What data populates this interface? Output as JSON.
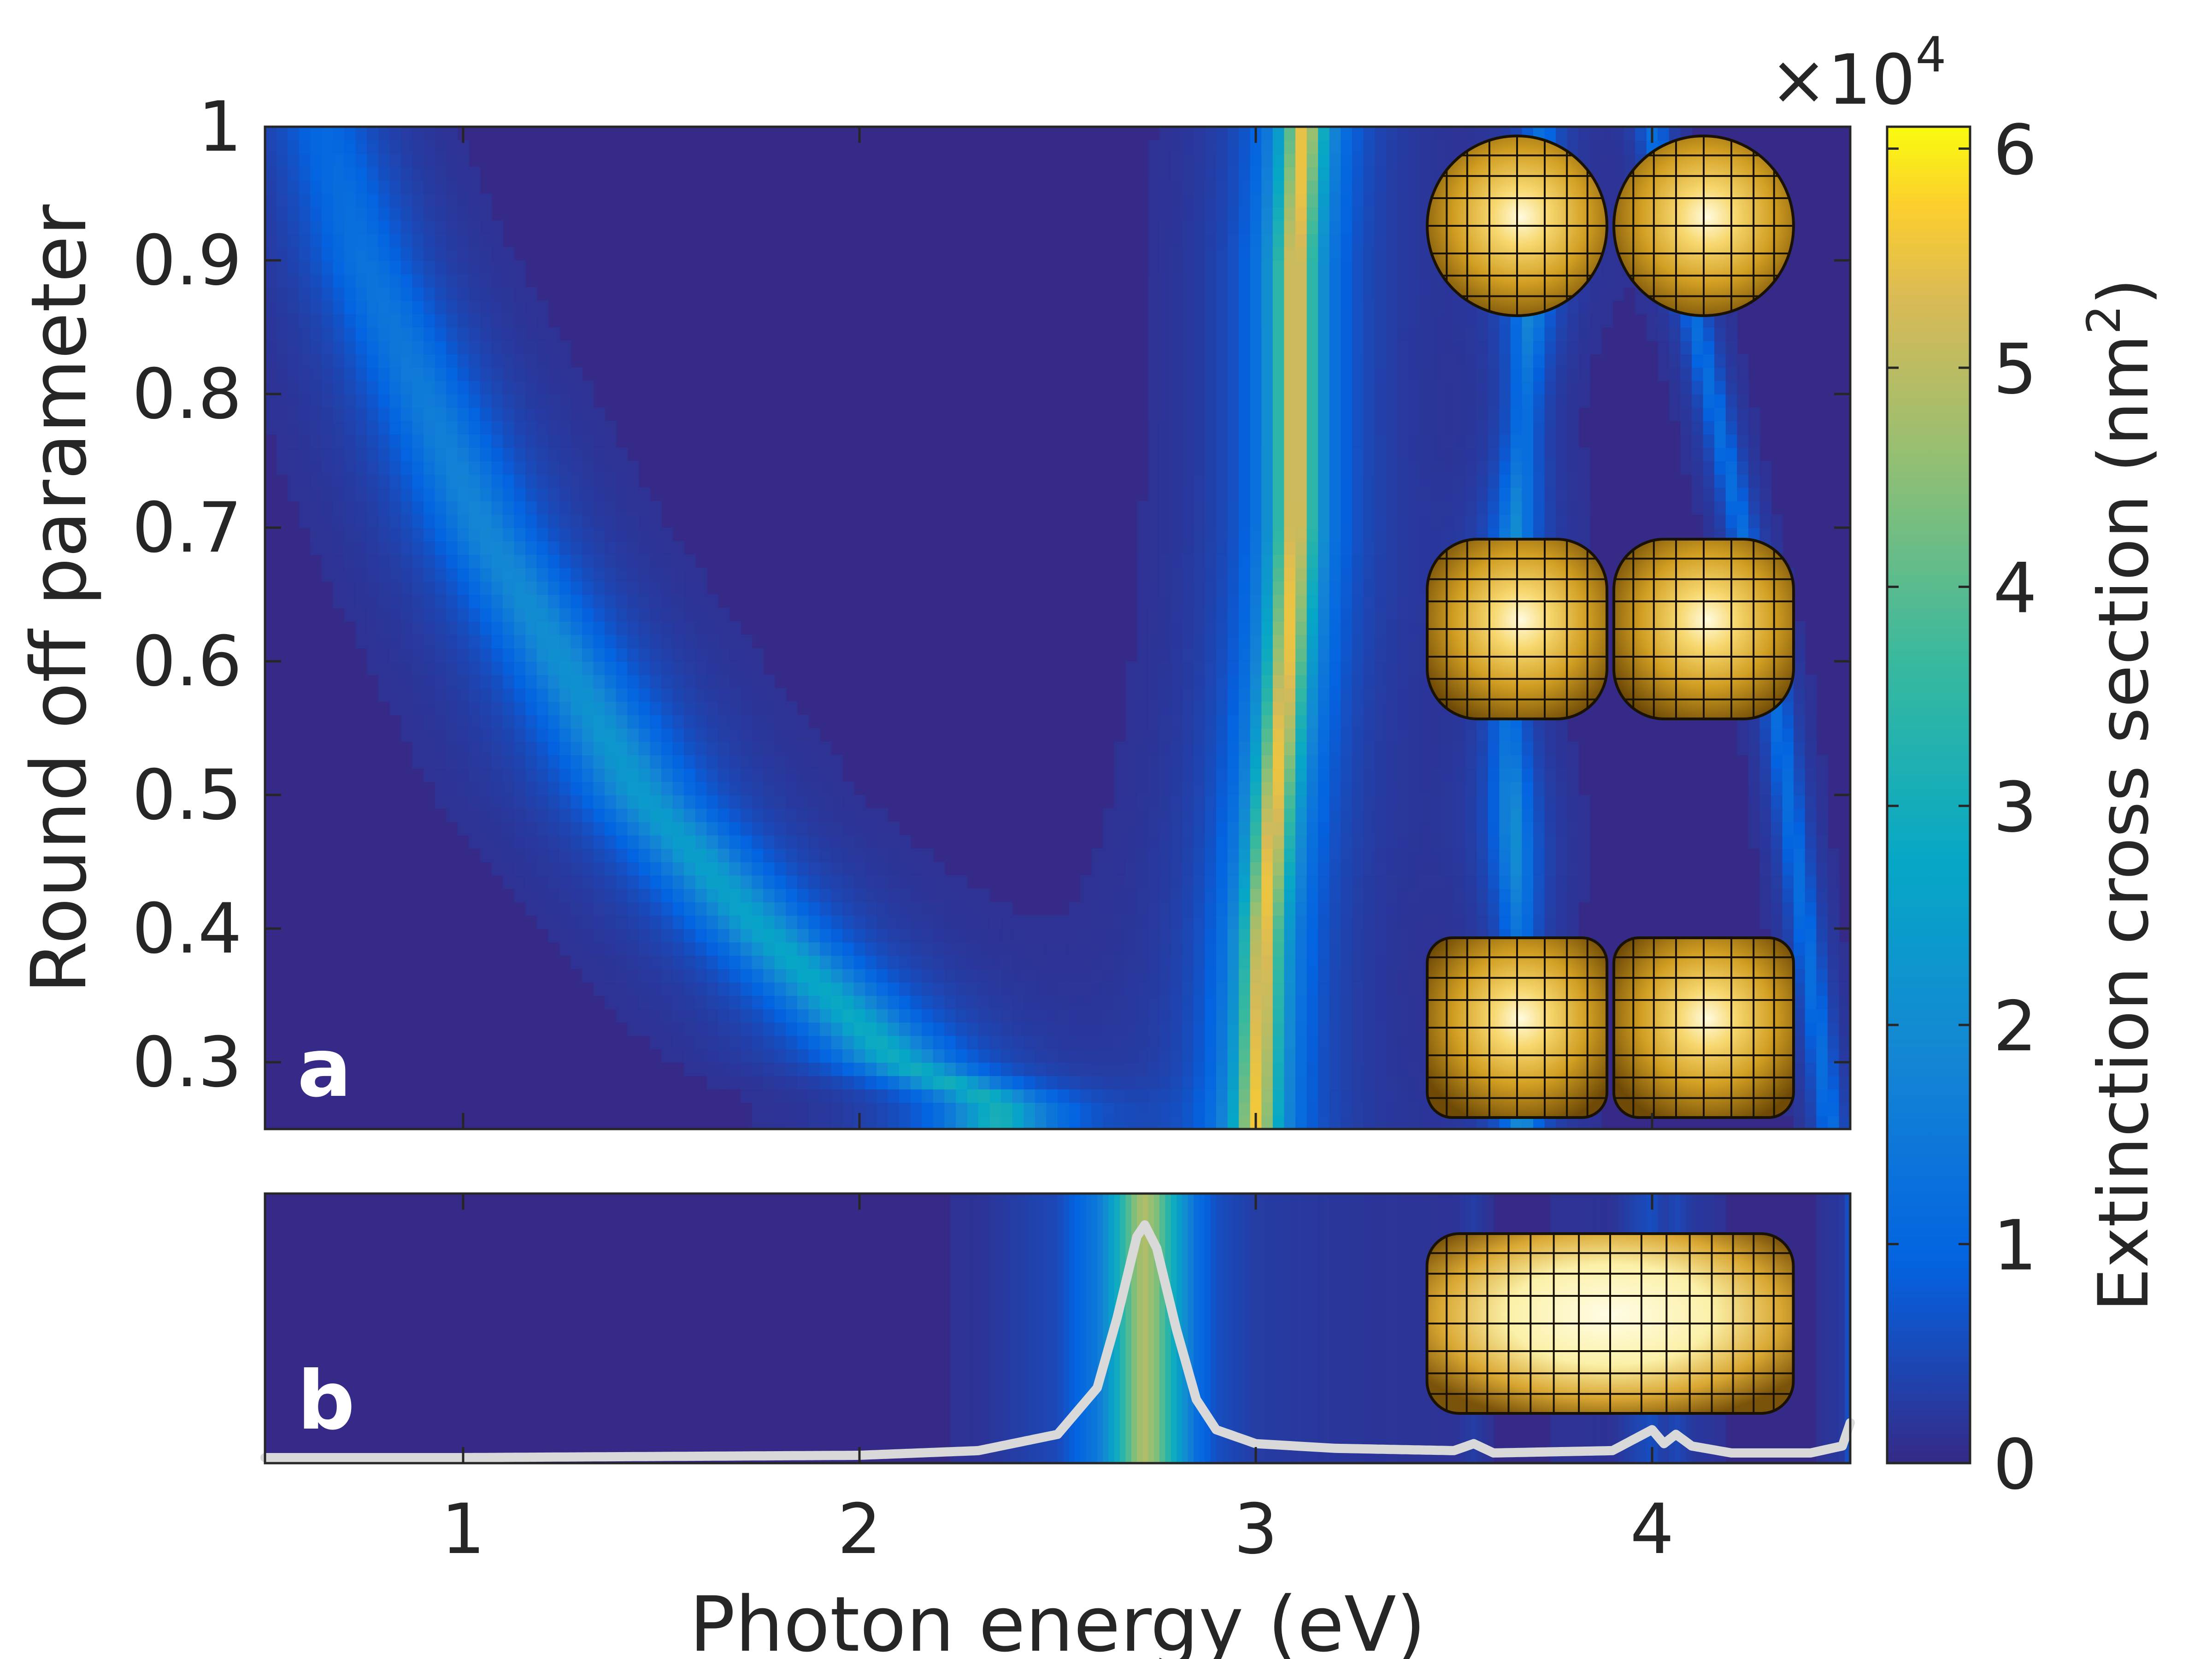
{
  "chart_data": [
    {
      "panel": "a",
      "type": "heatmap",
      "panel_label": "a",
      "xlabel": "Photon energy (eV)",
      "ylabel": "Round off parameter",
      "xlim": [
        0.5,
        4.5
      ],
      "ylim": [
        0.25,
        1.0
      ],
      "xticks": [
        1,
        2,
        3,
        4
      ],
      "yticks": [
        0.3,
        0.4,
        0.5,
        0.6,
        0.7,
        0.8,
        0.9,
        1
      ],
      "ytick_labels": [
        "0.3",
        "0.4",
        "0.5",
        "0.6",
        "0.7",
        "0.8",
        "0.9",
        "1"
      ],
      "resonances": [
        {
          "name": "low-energy mode",
          "peak_eV_vs_roundoff": [
            [
              0.27,
              2.35
            ],
            [
              0.3,
              2.1
            ],
            [
              0.4,
              1.75
            ],
            [
              0.5,
              1.45
            ],
            [
              0.6,
              1.25
            ],
            [
              0.7,
              1.05
            ],
            [
              0.8,
              0.9
            ],
            [
              0.9,
              0.75
            ],
            [
              1.0,
              0.65
            ]
          ],
          "peak_value": 30000
        },
        {
          "name": "main dimer mode",
          "peak_eV_vs_roundoff": [
            [
              0.25,
              3.0
            ],
            [
              0.4,
              3.02
            ],
            [
              0.5,
              3.05
            ],
            [
              0.6,
              3.08
            ],
            [
              0.7,
              3.1
            ],
            [
              0.8,
              3.1
            ],
            [
              0.9,
              3.1
            ],
            [
              1.0,
              3.12
            ]
          ],
          "peak_value": 55000
        },
        {
          "name": "higher mode",
          "peak_eV_vs_roundoff": [
            [
              0.35,
              3.67
            ],
            [
              0.6,
              3.63
            ],
            [
              0.8,
              3.68
            ],
            [
              1.0,
              3.72
            ]
          ],
          "peak_value": 20000
        },
        {
          "name": "edge mode",
          "peak_eV_vs_roundoff": [
            [
              0.25,
              4.45
            ],
            [
              0.6,
              4.3
            ],
            [
              1.0,
              4.0
            ]
          ],
          "peak_value": 12000
        }
      ],
      "insets": [
        "sphere-dimer",
        "rounded-cube-dimer",
        "cube-dimer"
      ]
    },
    {
      "panel": "b",
      "type": "line",
      "panel_label": "b",
      "xlabel": "Photon energy (eV)",
      "xlim": [
        0.5,
        4.5
      ],
      "xticks": [
        1,
        2,
        3,
        4
      ],
      "series": [
        {
          "name": "Extinction spectrum",
          "x": [
            0.5,
            1.0,
            1.5,
            2.0,
            2.3,
            2.5,
            2.6,
            2.65,
            2.7,
            2.72,
            2.75,
            2.8,
            2.85,
            2.9,
            3.0,
            3.2,
            3.5,
            3.55,
            3.6,
            3.9,
            4.0,
            4.03,
            4.06,
            4.1,
            4.2,
            4.4,
            4.48,
            4.5
          ],
          "values": [
            0.0,
            0.0,
            0.005,
            0.01,
            0.03,
            0.1,
            0.3,
            0.6,
            0.95,
            1.0,
            0.9,
            0.55,
            0.25,
            0.12,
            0.06,
            0.04,
            0.03,
            0.06,
            0.02,
            0.03,
            0.12,
            0.06,
            0.1,
            0.05,
            0.02,
            0.02,
            0.05,
            0.15
          ]
        }
      ],
      "insets": [
        "merged-rod"
      ]
    }
  ],
  "colorbar": {
    "label_prefix": "Extinction cross section (nm",
    "label_sup": "2",
    "label_suffix": ")",
    "multiplier_prefix": "×10",
    "multiplier_exp": "4",
    "range": [
      0,
      6.1
    ],
    "ticks": [
      "0",
      "1",
      "2",
      "3",
      "4",
      "5",
      "6"
    ],
    "colormap": "parula"
  },
  "x_axis_label": "Photon energy (eV)",
  "y_axis_label": "Round off parameter",
  "colors": {
    "background": "#352a87",
    "trace": "#d9d9d9",
    "inset_gold": "#d8a520"
  }
}
